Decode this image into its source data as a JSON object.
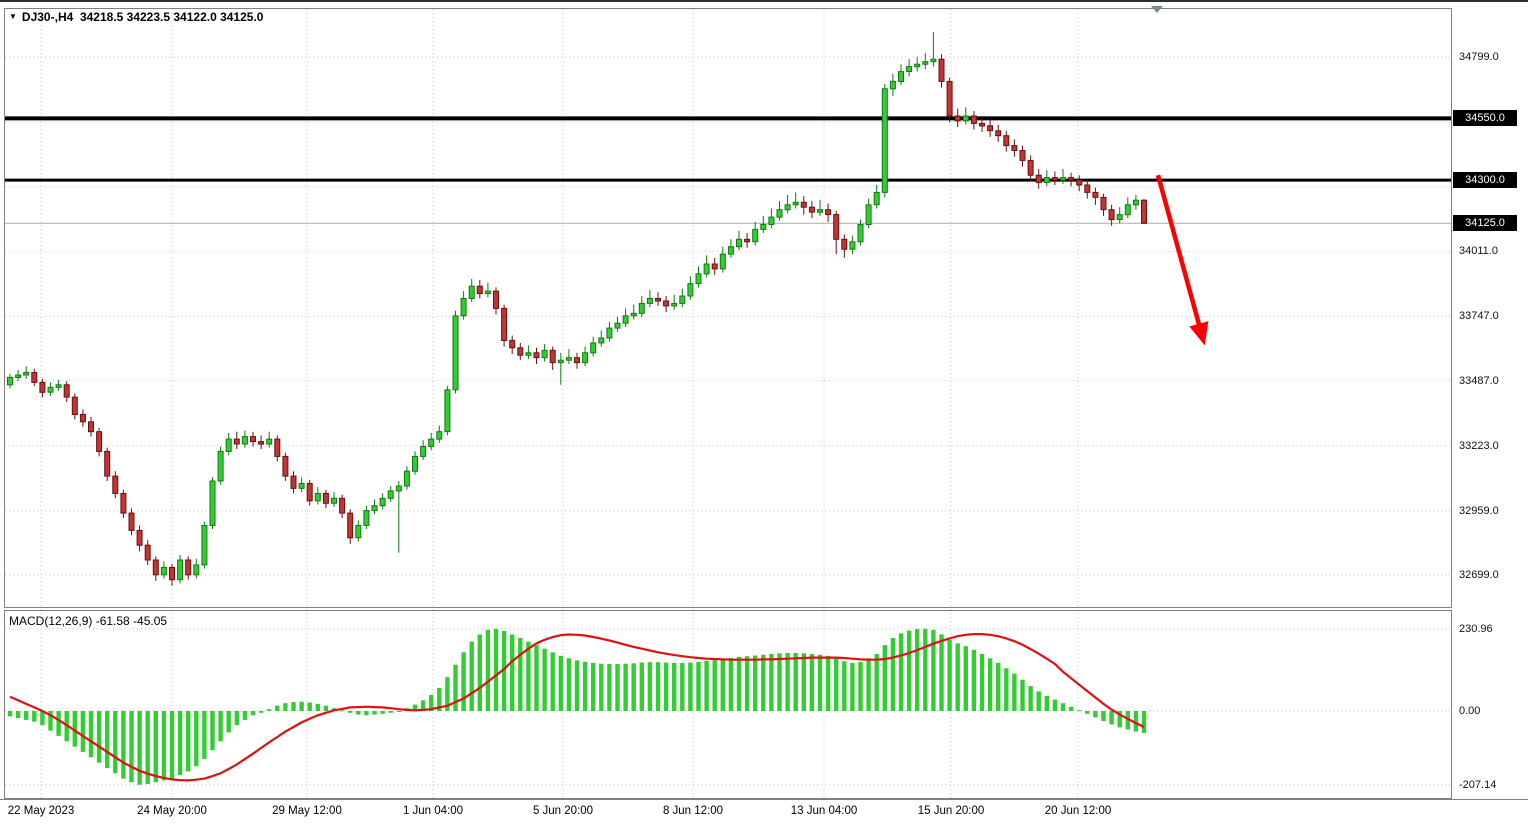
{
  "header": {
    "dropdown_icon": "▼",
    "text": "DJ30-,H4  34218.5 34223.5 34122.0 34125.0"
  },
  "chart_data": [
    {
      "type": "candlestick",
      "symbol": "DJ30-",
      "timeframe": "H4",
      "current_ohlc": {
        "open": 34218.5,
        "high": 34223.5,
        "low": 34122.0,
        "close": 34125.0
      },
      "x_tick_labels": [
        "22 May 2023",
        "24 May 20:00",
        "29 May 12:00",
        "1 Jun 04:00",
        "5 Jun 20:00",
        "8 Jun 12:00",
        "13 Jun 04:00",
        "15 Jun 20:00",
        "20 Jun 12:00"
      ],
      "y_tick_labels": [
        34799.0,
        34011.0,
        33747.0,
        33487.0,
        33223.0,
        32959.0,
        32699.0
      ],
      "grid_levels": [
        34799,
        34535,
        34273,
        34011,
        33747,
        33487,
        33223,
        32959,
        32699
      ],
      "y_range_anchor": {
        "price_top": 34799,
        "price_bottom": 32699
      },
      "horizontal_lines": [
        34550.0,
        34300.0
      ],
      "current_price": 34125.0,
      "annotation_arrow": {
        "color": "#ff0000",
        "from_price": 34320,
        "to_price": 33700
      },
      "colors": {
        "up": "#32cd32",
        "up_border": "#0e7a0e",
        "down": "#c13535",
        "down_border": "#6b0f0f",
        "level_line": "#000000",
        "current_price_line": "#aaaaaa"
      },
      "candles": [
        [
          33470,
          33515,
          33455,
          33500
        ],
        [
          33500,
          33530,
          33485,
          33510
        ],
        [
          33510,
          33545,
          33495,
          33520
        ],
        [
          33520,
          33535,
          33465,
          33480
        ],
        [
          33480,
          33495,
          33420,
          33440
        ],
        [
          33440,
          33480,
          33425,
          33460
        ],
        [
          33460,
          33490,
          33445,
          33470
        ],
        [
          33470,
          33485,
          33400,
          33420
        ],
        [
          33420,
          33435,
          33330,
          33350
        ],
        [
          33350,
          33370,
          33300,
          33320
        ],
        [
          33320,
          33340,
          33260,
          33280
        ],
        [
          33280,
          33295,
          33180,
          33200
        ],
        [
          33200,
          33215,
          33080,
          33100
        ],
        [
          33100,
          33120,
          33010,
          33030
        ],
        [
          33030,
          33045,
          32930,
          32950
        ],
        [
          32950,
          32970,
          32860,
          32880
        ],
        [
          32880,
          32900,
          32795,
          32820
        ],
        [
          32820,
          32840,
          32740,
          32760
        ],
        [
          32760,
          32775,
          32675,
          32700
        ],
        [
          32700,
          32755,
          32685,
          32730
        ],
        [
          32730,
          32745,
          32655,
          32680
        ],
        [
          32680,
          32780,
          32665,
          32760
        ],
        [
          32760,
          32775,
          32680,
          32700
        ],
        [
          32700,
          32765,
          32685,
          32740
        ],
        [
          32740,
          32915,
          32725,
          32900
        ],
        [
          32900,
          33095,
          32885,
          33080
        ],
        [
          33080,
          33220,
          33065,
          33200
        ],
        [
          33200,
          33275,
          33185,
          33250
        ],
        [
          33250,
          33280,
          33210,
          33230
        ],
        [
          33230,
          33285,
          33215,
          33260
        ],
        [
          33260,
          33280,
          33220,
          33240
        ],
        [
          33240,
          33265,
          33210,
          33230
        ],
        [
          33230,
          33280,
          33215,
          33250
        ],
        [
          33250,
          33265,
          33160,
          33180
        ],
        [
          33180,
          33195,
          33080,
          33100
        ],
        [
          33100,
          33120,
          33030,
          33050
        ],
        [
          33050,
          33095,
          33035,
          33070
        ],
        [
          33070,
          33085,
          32980,
          33000
        ],
        [
          33000,
          33055,
          32985,
          33030
        ],
        [
          33030,
          33045,
          32970,
          32990
        ],
        [
          32990,
          33035,
          32975,
          33010
        ],
        [
          33010,
          33025,
          32930,
          32950
        ],
        [
          32950,
          32965,
          32825,
          32850
        ],
        [
          32850,
          32920,
          32835,
          32900
        ],
        [
          32900,
          32980,
          32885,
          32960
        ],
        [
          32960,
          33005,
          32945,
          32980
        ],
        [
          32980,
          33030,
          32965,
          33010
        ],
        [
          33010,
          33060,
          32995,
          33040
        ],
        [
          33040,
          33080,
          32790,
          33060
        ],
        [
          33060,
          33140,
          33045,
          33120
        ],
        [
          33120,
          33200,
          33105,
          33180
        ],
        [
          33180,
          33245,
          33165,
          33220
        ],
        [
          33220,
          33275,
          33205,
          33250
        ],
        [
          33250,
          33305,
          33235,
          33280
        ],
        [
          33280,
          33465,
          33265,
          33450
        ],
        [
          33450,
          33770,
          33435,
          33750
        ],
        [
          33750,
          33850,
          33735,
          33820
        ],
        [
          33820,
          33900,
          33805,
          33870
        ],
        [
          33870,
          33895,
          33820,
          33840
        ],
        [
          33840,
          33885,
          33825,
          33850
        ],
        [
          33850,
          33865,
          33755,
          33780
        ],
        [
          33780,
          33795,
          33625,
          33650
        ],
        [
          33650,
          33670,
          33595,
          33620
        ],
        [
          33620,
          33640,
          33570,
          33590
        ],
        [
          33590,
          33630,
          33575,
          33600
        ],
        [
          33600,
          33620,
          33555,
          33580
        ],
        [
          33580,
          33635,
          33565,
          33610
        ],
        [
          33610,
          33625,
          33530,
          33560
        ],
        [
          33560,
          33600,
          33470,
          33570
        ],
        [
          33570,
          33615,
          33555,
          33580
        ],
        [
          33580,
          33600,
          33535,
          33560
        ],
        [
          33560,
          33625,
          33545,
          33600
        ],
        [
          33600,
          33665,
          33585,
          33640
        ],
        [
          33640,
          33690,
          33625,
          33660
        ],
        [
          33660,
          33725,
          33645,
          33700
        ],
        [
          33700,
          33745,
          33685,
          33720
        ],
        [
          33720,
          33780,
          33705,
          33750
        ],
        [
          33750,
          33795,
          33735,
          33760
        ],
        [
          33760,
          33830,
          33745,
          33800
        ],
        [
          33800,
          33855,
          33785,
          33820
        ],
        [
          33820,
          33845,
          33790,
          33810
        ],
        [
          33810,
          33830,
          33765,
          33790
        ],
        [
          33790,
          33835,
          33775,
          33800
        ],
        [
          33800,
          33860,
          33785,
          33830
        ],
        [
          33830,
          33910,
          33815,
          33880
        ],
        [
          33880,
          33950,
          33865,
          33920
        ],
        [
          33920,
          33995,
          33905,
          33960
        ],
        [
          33960,
          33985,
          33915,
          33940
        ],
        [
          33940,
          34030,
          33925,
          34000
        ],
        [
          34000,
          34060,
          33985,
          34030
        ],
        [
          34030,
          34095,
          34015,
          34060
        ],
        [
          34060,
          34085,
          34025,
          34050
        ],
        [
          34050,
          34130,
          34035,
          34100
        ],
        [
          34100,
          34155,
          34085,
          34120
        ],
        [
          34120,
          34185,
          34105,
          34150
        ],
        [
          34150,
          34215,
          34135,
          34180
        ],
        [
          34180,
          34240,
          34165,
          34200
        ],
        [
          34200,
          34250,
          34185,
          34210
        ],
        [
          34210,
          34235,
          34160,
          34190
        ],
        [
          34190,
          34215,
          34145,
          34170
        ],
        [
          34170,
          34220,
          34155,
          34180
        ],
        [
          34180,
          34205,
          34130,
          34160
        ],
        [
          34160,
          34175,
          34000,
          34060
        ],
        [
          34060,
          34080,
          33985,
          34020
        ],
        [
          34020,
          34075,
          34000,
          34050
        ],
        [
          34050,
          34140,
          34035,
          34120
        ],
        [
          34120,
          34225,
          34105,
          34200
        ],
        [
          34200,
          34280,
          34185,
          34250
        ],
        [
          34250,
          34690,
          34230,
          34670
        ],
        [
          34670,
          34730,
          34640,
          34700
        ],
        [
          34700,
          34770,
          34685,
          34740
        ],
        [
          34740,
          34790,
          34720,
          34760
        ],
        [
          34760,
          34800,
          34740,
          34770
        ],
        [
          34770,
          34815,
          34750,
          34780
        ],
        [
          34780,
          34900,
          34760,
          34790
        ],
        [
          34790,
          34810,
          34675,
          34700
        ],
        [
          34700,
          34715,
          34535,
          34560
        ],
        [
          34560,
          34590,
          34515,
          34540
        ],
        [
          34540,
          34595,
          34525,
          34560
        ],
        [
          34560,
          34580,
          34505,
          34530
        ],
        [
          34530,
          34560,
          34495,
          34520
        ],
        [
          34520,
          34545,
          34475,
          34500
        ],
        [
          34500,
          34525,
          34455,
          34480
        ],
        [
          34480,
          34500,
          34415,
          34440
        ],
        [
          34440,
          34465,
          34395,
          34420
        ],
        [
          34420,
          34440,
          34355,
          34380
        ],
        [
          34380,
          34400,
          34295,
          34320
        ],
        [
          34320,
          34345,
          34265,
          34290
        ],
        [
          34290,
          34340,
          34275,
          34310
        ],
        [
          34310,
          34335,
          34280,
          34300
        ],
        [
          34300,
          34345,
          34285,
          34310
        ],
        [
          34310,
          34330,
          34275,
          34300
        ],
        [
          34300,
          34320,
          34255,
          34280
        ],
        [
          34280,
          34300,
          34225,
          34250
        ],
        [
          34250,
          34270,
          34200,
          34230
        ],
        [
          34230,
          34245,
          34155,
          34180
        ],
        [
          34180,
          34200,
          34115,
          34140
        ],
        [
          34140,
          34190,
          34125,
          34160
        ],
        [
          34160,
          34230,
          34145,
          34200
        ],
        [
          34200,
          34240,
          34180,
          34218.5
        ],
        [
          34218.5,
          34223.5,
          34122.0,
          34125.0
        ]
      ]
    },
    {
      "type": "macd",
      "label": "MACD(12,26,9)",
      "label_text": "MACD(12,26,9) -61.58 -45.05",
      "value_main": -61.58,
      "value_signal": -45.05,
      "y_tick_labels": [
        230.96,
        0.0,
        -207.14
      ],
      "colors": {
        "histogram": "#32cd32",
        "signal": "#e01010"
      },
      "histogram": [
        -15,
        -20,
        -25,
        -30,
        -40,
        -55,
        -70,
        -85,
        -100,
        -115,
        -130,
        -145,
        -160,
        -175,
        -190,
        -200,
        -207,
        -205,
        -200,
        -195,
        -190,
        -180,
        -170,
        -155,
        -135,
        -110,
        -85,
        -60,
        -40,
        -25,
        -12,
        -5,
        5,
        15,
        22,
        25,
        26,
        24,
        20,
        15,
        8,
        2,
        -5,
        -10,
        -12,
        -10,
        -8,
        -5,
        0,
        8,
        18,
        30,
        45,
        65,
        95,
        130,
        165,
        195,
        215,
        228,
        231,
        225,
        215,
        205,
        195,
        185,
        175,
        165,
        155,
        148,
        142,
        138,
        135,
        133,
        132,
        132,
        133,
        134,
        136,
        137,
        137,
        136,
        135,
        135,
        136,
        138,
        141,
        143,
        146,
        149,
        152,
        154,
        156,
        158,
        160,
        162,
        163,
        163,
        162,
        160,
        158,
        155,
        148,
        140,
        135,
        138,
        148,
        160,
        185,
        205,
        218,
        226,
        230,
        231,
        228,
        215,
        200,
        190,
        182,
        172,
        160,
        148,
        135,
        120,
        105,
        88,
        70,
        55,
        42,
        32,
        22,
        12,
        2,
        -8,
        -18,
        -28,
        -38,
        -46,
        -52,
        -58,
        -61.58
      ],
      "signal": [
        40,
        30,
        20,
        10,
        0,
        -12,
        -25,
        -40,
        -55,
        -70,
        -85,
        -100,
        -115,
        -130,
        -145,
        -157,
        -168,
        -176,
        -183,
        -188,
        -192,
        -194,
        -195,
        -193,
        -190,
        -183,
        -175,
        -163,
        -150,
        -135,
        -120,
        -104,
        -88,
        -73,
        -58,
        -45,
        -32,
        -22,
        -12,
        -5,
        2,
        6,
        10,
        11,
        12,
        11,
        10,
        8,
        5,
        3,
        2,
        3,
        5,
        10,
        15,
        25,
        35,
        50,
        65,
        82,
        100,
        118,
        140,
        158,
        175,
        190,
        200,
        208,
        213,
        215,
        214,
        212,
        208,
        203,
        198,
        192,
        186,
        180,
        175,
        170,
        165,
        161,
        157,
        154,
        151,
        149,
        147,
        146,
        145,
        144,
        144,
        144,
        144,
        145,
        145,
        146,
        147,
        148,
        149,
        150,
        150,
        150,
        150,
        149,
        147,
        145,
        144,
        144,
        146,
        150,
        156,
        163,
        171,
        180,
        189,
        197,
        204,
        210,
        214,
        216,
        216,
        214,
        210,
        204,
        196,
        186,
        174,
        161,
        147,
        132,
        110,
        92,
        74,
        56,
        38,
        20,
        4,
        -10,
        -22,
        -34,
        -45.05
      ]
    }
  ]
}
